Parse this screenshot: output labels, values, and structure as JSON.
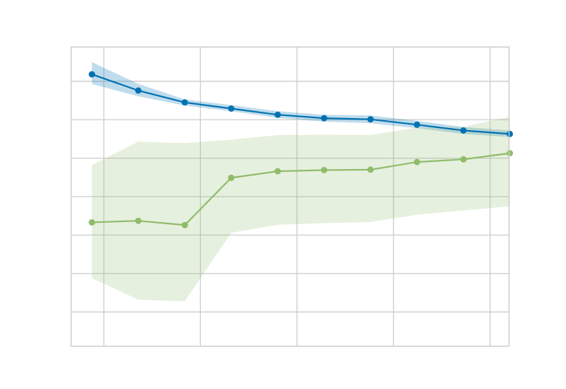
{
  "chart_data": {
    "type": "line",
    "title": "",
    "xlabel": "",
    "ylabel": "",
    "xlim": [
      0.078,
      1.032
    ],
    "ylim": [
      0.6,
      1.38
    ],
    "grid": true,
    "x_gridlines": [
      0.15,
      0.36,
      0.57,
      0.78,
      0.99
    ],
    "y_gridlines": [
      0.69,
      0.79,
      0.89,
      0.99,
      1.09,
      1.19,
      1.29
    ],
    "series": [
      {
        "color": "#0072b2",
        "band_color": "#0072b2",
        "x": [
          0.124,
          0.225,
          0.326,
          0.427,
          0.528,
          0.629,
          0.73,
          0.831,
          0.932,
          1.033
        ],
        "y": [
          1.308,
          1.266,
          1.235,
          1.219,
          1.203,
          1.194,
          1.191,
          1.177,
          1.162,
          1.153
        ],
        "lower": [
          1.283,
          1.251,
          1.227,
          1.212,
          1.195,
          1.185,
          1.181,
          1.168,
          1.153,
          1.145
        ],
        "upper": [
          1.34,
          1.283,
          1.243,
          1.228,
          1.212,
          1.203,
          1.201,
          1.187,
          1.171,
          1.162
        ]
      },
      {
        "color": "#8fbc6b",
        "band_color": "#8fbc6b",
        "x": [
          0.124,
          0.225,
          0.326,
          0.427,
          0.528,
          0.629,
          0.73,
          0.831,
          0.932,
          1.033
        ],
        "y": [
          0.923,
          0.927,
          0.916,
          1.039,
          1.056,
          1.059,
          1.06,
          1.08,
          1.087,
          1.103
        ],
        "lower": [
          0.778,
          0.722,
          0.718,
          0.896,
          0.917,
          0.921,
          0.924,
          0.943,
          0.954,
          0.965
        ],
        "upper": [
          1.072,
          1.133,
          1.129,
          1.138,
          1.15,
          1.151,
          1.15,
          1.17,
          1.172,
          1.198
        ]
      }
    ]
  }
}
